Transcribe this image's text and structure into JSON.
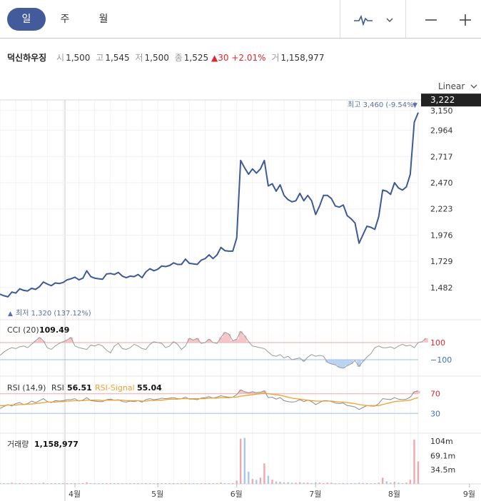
{
  "tabs": [
    {
      "label": "일",
      "active": true
    },
    {
      "label": "주",
      "active": false
    },
    {
      "label": "월",
      "active": false
    }
  ],
  "toolbar": {
    "chart_type_icon": "line-chart-icon",
    "dropdown_icon": "chevron-down-icon",
    "zoom_out_icon": "minus-icon",
    "zoom_in_icon": "plus-icon"
  },
  "quote": {
    "name": "덕신하우징",
    "open_label": "시",
    "open": "1,500",
    "high_label": "고",
    "high": "1,545",
    "low_label": "저",
    "low": "1,500",
    "close_label": "종",
    "close": "1,525",
    "change_arrow": "▲",
    "change": "30",
    "change_pct": "+2.01%",
    "volume_label": "거",
    "volume": "1,158,977"
  },
  "scale_selector": {
    "label": "Linear"
  },
  "colors": {
    "price_line": "#3d5a96",
    "up": "#e0272f",
    "indicator": "#b8b8b8",
    "signal": "#f0a030",
    "current_price_bg": "#222222",
    "cci_pos": "#f2b8bc",
    "cci_neg": "#a9c8ef",
    "vol_bar": "#f0a8ad",
    "vol_bar_dn": "#a9c8ef"
  },
  "chart_data": {
    "type": "line",
    "title": "덕신하우징 일봉",
    "x": [
      0,
      1,
      2,
      3,
      4,
      5,
      6,
      7,
      8,
      9,
      10,
      11,
      12,
      13,
      14,
      15,
      16,
      17,
      18,
      19,
      20,
      21,
      22,
      23,
      24,
      25,
      26,
      27,
      28,
      29,
      30,
      31,
      32,
      33,
      34,
      35,
      36,
      37,
      38,
      39,
      40,
      41,
      42,
      43,
      44,
      45,
      46,
      47,
      48,
      49,
      50,
      51,
      52,
      53,
      54,
      55,
      56,
      57,
      58,
      59,
      60,
      61,
      62,
      63,
      64,
      65,
      66,
      67,
      68,
      69,
      70,
      71,
      72,
      73,
      74,
      75,
      76,
      77,
      78,
      79,
      80,
      81,
      82,
      83,
      84,
      85,
      86,
      87,
      88,
      89,
      90,
      91,
      92,
      93,
      94,
      95,
      96,
      97,
      98,
      99,
      100,
      101,
      102,
      103,
      104,
      105,
      106,
      107,
      108,
      109,
      110,
      111,
      112,
      113,
      114,
      115,
      116,
      117,
      118,
      119,
      120,
      121,
      122,
      123,
      124,
      125,
      126
    ],
    "price": [
      1420,
      1405,
      1395,
      1440,
      1430,
      1470,
      1455,
      1450,
      1475,
      1465,
      1490,
      1535,
      1515,
      1500,
      1525,
      1520,
      1530,
      1555,
      1565,
      1580,
      1555,
      1570,
      1640,
      1585,
      1570,
      1565,
      1560,
      1610,
      1615,
      1605,
      1625,
      1590,
      1575,
      1590,
      1585,
      1605,
      1575,
      1630,
      1660,
      1640,
      1655,
      1685,
      1680,
      1690,
      1715,
      1700,
      1700,
      1750,
      1710,
      1705,
      1700,
      1740,
      1755,
      1790,
      1755,
      1790,
      1860,
      1830,
      1825,
      1825,
      1950,
      2680,
      2610,
      2550,
      2600,
      2560,
      2600,
      2680,
      2440,
      2460,
      2390,
      2450,
      2350,
      2310,
      2290,
      2300,
      2370,
      2300,
      2350,
      2300,
      2170,
      2250,
      2350,
      2350,
      2320,
      2250,
      2240,
      2260,
      2160,
      2130,
      2090,
      1900,
      1980,
      2060,
      2050,
      2030,
      2150,
      2400,
      2390,
      2360,
      2470,
      2420,
      2400,
      2430,
      2550,
      3040,
      3130
    ],
    "dates_axis": [
      {
        "label": "4월",
        "i": 19
      },
      {
        "label": "5월",
        "i": 40
      },
      {
        "label": "6월",
        "i": 60
      },
      {
        "label": "7월",
        "i": 80
      },
      {
        "label": "8월",
        "i": 100
      },
      {
        "label": "9월",
        "i": 119
      }
    ],
    "price_axis": {
      "ylim": [
        1300,
        3250
      ],
      "ticks": [
        "1,482",
        "1,729",
        "1,976",
        "2,223",
        "2,470",
        "2,717",
        "2,964",
        "3,150"
      ],
      "tick_values": [
        1482,
        1729,
        1976,
        2223,
        2470,
        2717,
        2964,
        3150
      ]
    },
    "current_price": {
      "value": 3222,
      "label": "3,222"
    },
    "max_annotation": {
      "label": "최고 3,460 (-9.54%)",
      "arrow": "▼"
    },
    "min_annotation": {
      "label": "최저 1,320 (137.12%)",
      "arrow": "▲"
    },
    "cci": {
      "title": "CCI (20)",
      "value": "109.49",
      "levels": [
        "100",
        "−100"
      ],
      "level_values": [
        100,
        -100
      ],
      "ylim": [
        -250,
        350
      ],
      "values": [
        -50,
        -10,
        20,
        40,
        30,
        50,
        60,
        40,
        80,
        120,
        160,
        120,
        40,
        20,
        60,
        90,
        110,
        130,
        160,
        60,
        40,
        30,
        20,
        70,
        60,
        80,
        60,
        10,
        -20,
        60,
        90,
        30,
        20,
        40,
        80,
        60,
        30,
        20,
        80,
        110,
        100,
        90,
        40,
        60,
        110,
        80,
        20,
        60,
        150,
        130,
        150,
        90,
        100,
        140,
        100,
        90,
        160,
        220,
        200,
        120,
        140,
        230,
        180,
        110,
        60,
        50,
        40,
        30,
        -10,
        -50,
        -60,
        -40,
        -80,
        -60,
        -100,
        -90,
        -80,
        -120,
        -70,
        -40,
        -60,
        -50,
        -60,
        -130,
        -150,
        -160,
        -190,
        -200,
        -170,
        -150,
        -110,
        -180,
        -120,
        -70,
        -30,
        40,
        60,
        40,
        40,
        50,
        30,
        60,
        80,
        60,
        70,
        40,
        100,
        110,
        150
      ]
    },
    "rsi": {
      "title": "RSI (14,9)",
      "rsi_label": "RSI",
      "rsi_value": "56.51",
      "signal_label": "RSI-Signal",
      "signal_value": "55.04",
      "levels": [
        "70",
        "30"
      ],
      "level_values": [
        70,
        30
      ],
      "ylim": [
        0,
        100
      ],
      "values": [
        40,
        44,
        48,
        45,
        50,
        52,
        48,
        50,
        55,
        52,
        56,
        60,
        54,
        52,
        56,
        55,
        56,
        58,
        58,
        60,
        55,
        57,
        62,
        56,
        55,
        54,
        54,
        58,
        59,
        57,
        58,
        54,
        53,
        55,
        54,
        56,
        53,
        58,
        60,
        58,
        59,
        61,
        60,
        61,
        62,
        60,
        60,
        63,
        59,
        59,
        58,
        61,
        62,
        64,
        61,
        63,
        66,
        64,
        63,
        63,
        68,
        78,
        74,
        72,
        74,
        72,
        73,
        76,
        62,
        63,
        59,
        62,
        56,
        54,
        53,
        54,
        58,
        54,
        57,
        54,
        48,
        52,
        56,
        56,
        54,
        51,
        50,
        51,
        46,
        45,
        43,
        38,
        42,
        46,
        45,
        45,
        50,
        60,
        59,
        58,
        62,
        59,
        58,
        59,
        63,
        74,
        76
      ],
      "signal": [
        46,
        46,
        47,
        47,
        47,
        48,
        48,
        49,
        49,
        50,
        51,
        52,
        53,
        53,
        53,
        54,
        54,
        55,
        55,
        56,
        56,
        56,
        57,
        57,
        57,
        57,
        56,
        57,
        57,
        57,
        57,
        57,
        56,
        56,
        56,
        56,
        55,
        55,
        56,
        56,
        57,
        57,
        58,
        59,
        59,
        59,
        60,
        60,
        60,
        60,
        60,
        60,
        60,
        61,
        61,
        61,
        62,
        62,
        62,
        63,
        63,
        65,
        66,
        67,
        68,
        69,
        70,
        71,
        70,
        69,
        68,
        67,
        65,
        63,
        61,
        60,
        59,
        58,
        57,
        56,
        55,
        55,
        55,
        55,
        55,
        54,
        53,
        53,
        52,
        51,
        50,
        48,
        47,
        46,
        46,
        46,
        46,
        48,
        50,
        52,
        54,
        55,
        55,
        56,
        57,
        60,
        62
      ]
    },
    "volume": {
      "title": "거래량",
      "value": "1,158,977",
      "ticks": [
        "104m",
        "69.1m",
        "34.5m"
      ],
      "tick_values": [
        104,
        69.1,
        34.5
      ],
      "ylim": [
        0,
        120
      ],
      "values": [
        2,
        1,
        1,
        3,
        1,
        2,
        1,
        1,
        1,
        1,
        2,
        3,
        1,
        1,
        1,
        1,
        1,
        1,
        1,
        2,
        1,
        1,
        4,
        1,
        1,
        1,
        1,
        1,
        1,
        1,
        1,
        1,
        1,
        1,
        1,
        1,
        1,
        2,
        1,
        1,
        1,
        1,
        1,
        1,
        1,
        1,
        1,
        2,
        1,
        1,
        1,
        1,
        1,
        2,
        1,
        1,
        3,
        2,
        1,
        1,
        8,
        110,
        112,
        30,
        12,
        10,
        15,
        50,
        20,
        10,
        6,
        5,
        4,
        4,
        3,
        3,
        4,
        3,
        3,
        2,
        4,
        3,
        2,
        3,
        3,
        2,
        1,
        2,
        2,
        1,
        2,
        3,
        2,
        2,
        1,
        2,
        3,
        15,
        6,
        3,
        5,
        3,
        2,
        3,
        10,
        108,
        55
      ]
    }
  }
}
